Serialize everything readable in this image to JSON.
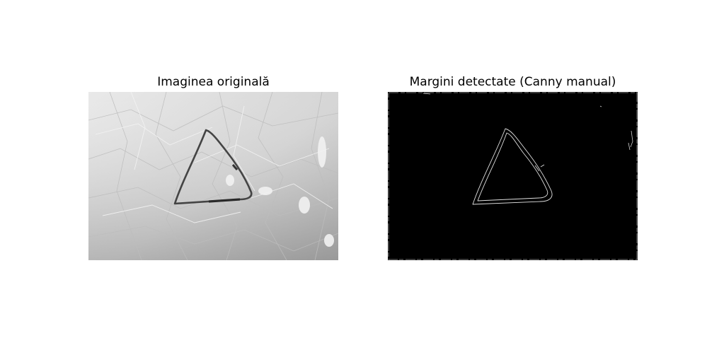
{
  "figure": {
    "left_title": "Imaginea originală",
    "right_title": "Margini detectate (Canny manual)"
  },
  "colors": {
    "paper_light": "#e6e6e6",
    "paper_dark": "#9a9a9a",
    "marker": "#444444",
    "edge_background": "#000000",
    "edge_line": "#e0e0e0"
  }
}
